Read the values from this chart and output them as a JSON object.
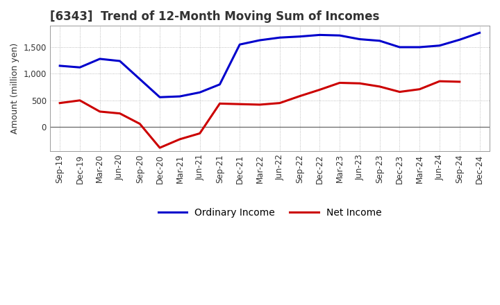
{
  "title": "[6343]  Trend of 12-Month Moving Sum of Incomes",
  "ylabel": "Amount (million yen)",
  "labels": [
    "Sep-19",
    "Dec-19",
    "Mar-20",
    "Jun-20",
    "Sep-20",
    "Dec-20",
    "Mar-21",
    "Jun-21",
    "Sep-21",
    "Dec-21",
    "Mar-22",
    "Jun-22",
    "Sep-22",
    "Dec-22",
    "Mar-23",
    "Jun-23",
    "Sep-23",
    "Dec-23",
    "Mar-24",
    "Jun-24",
    "Sep-24",
    "Dec-24"
  ],
  "ordinary_income": [
    1150,
    1120,
    1280,
    1240,
    900,
    560,
    575,
    650,
    800,
    1550,
    1630,
    1680,
    1700,
    1730,
    1720,
    1650,
    1620,
    1500,
    1500,
    1530,
    1640,
    1770
  ],
  "net_income": [
    450,
    500,
    290,
    255,
    60,
    -390,
    -230,
    -120,
    440,
    430,
    420,
    450,
    580,
    700,
    830,
    820,
    760,
    660,
    710,
    860,
    850,
    null
  ],
  "ordinary_color": "#0000cc",
  "net_color": "#cc0000",
  "background_color": "#ffffff",
  "grid_color": "#aaaaaa",
  "ylim": [
    -450,
    1900
  ],
  "yticks": [
    0,
    500,
    1000,
    1500
  ],
  "legend_labels": [
    "Ordinary Income",
    "Net Income"
  ],
  "line_width": 2.2,
  "title_color": "#333333",
  "title_fontsize": 12,
  "axis_fontsize": 8.5,
  "ylabel_fontsize": 9
}
